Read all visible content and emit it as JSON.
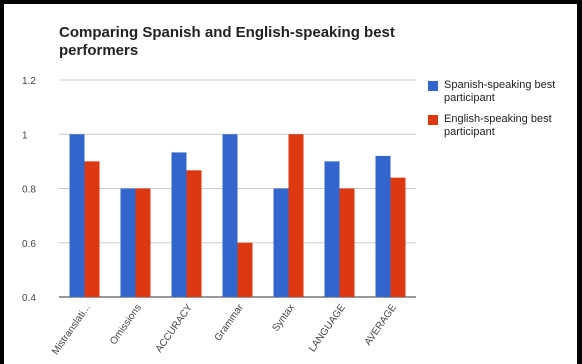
{
  "chart_data": {
    "type": "bar",
    "title": "Comparing Spanish and English-speaking best performers",
    "categories": [
      "Mistranslati...",
      "Omissions",
      "ACCURACY",
      "Grammar",
      "Syntax",
      "LANGUAGE",
      "AVERAGE"
    ],
    "series": [
      {
        "name": "Spanish-speaking best participant",
        "color": "#3366cc",
        "values": [
          1.0,
          0.8,
          0.933,
          1.0,
          0.8,
          0.9,
          0.92
        ]
      },
      {
        "name": "English-speaking best participant",
        "color": "#dc3912",
        "values": [
          0.9,
          0.8,
          0.867,
          0.6,
          1.0,
          0.8,
          0.84
        ]
      }
    ],
    "yticks": [
      "1.2",
      "1",
      "0.8",
      "0.6",
      "0.4"
    ],
    "ylim": [
      0.4,
      1.2
    ],
    "xlabel": "",
    "ylabel": "",
    "grid": true,
    "legend_position": "right"
  }
}
